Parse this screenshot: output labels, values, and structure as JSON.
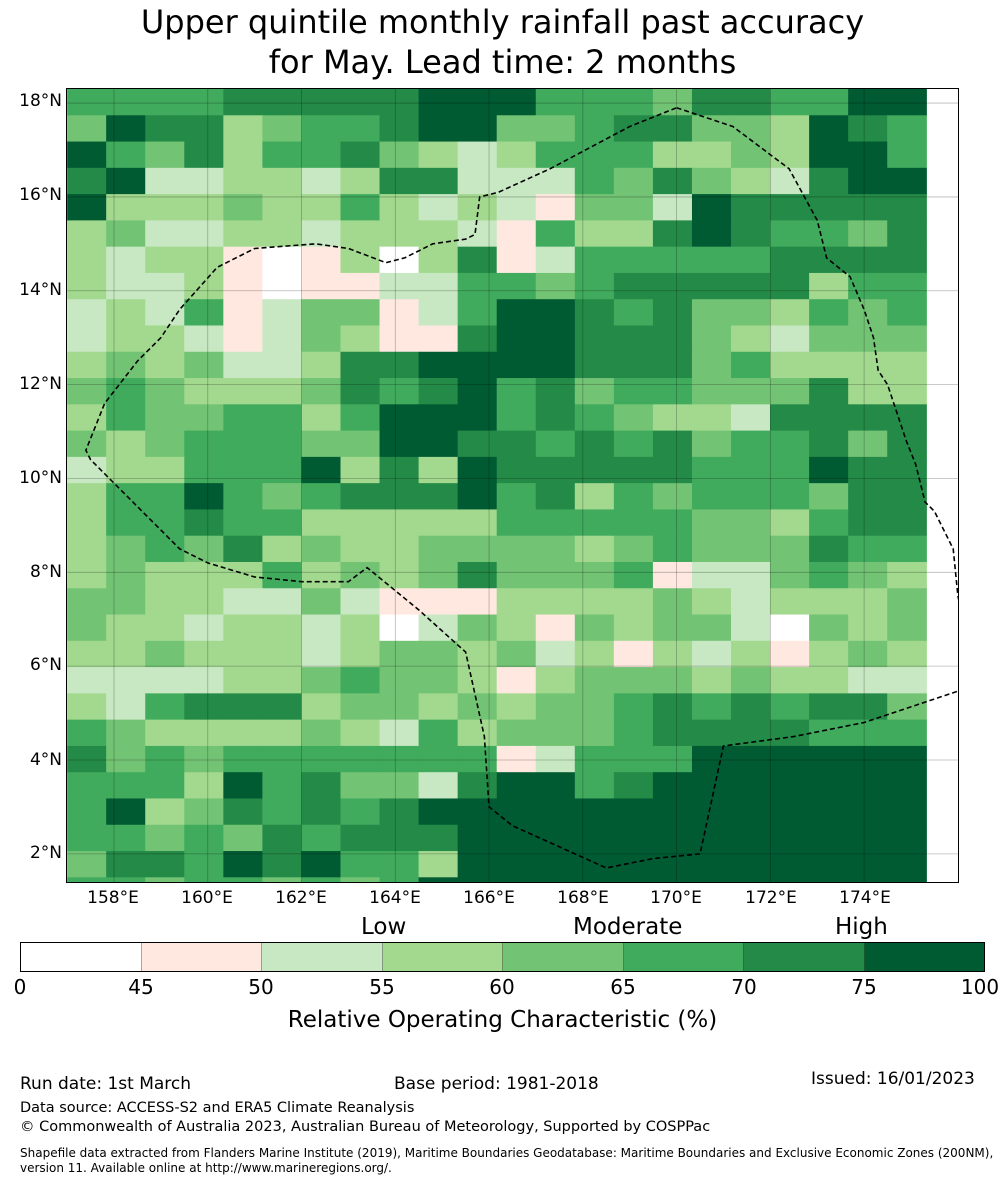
{
  "title": {
    "line1": "Upper quintile monthly rainfall past accuracy",
    "line2": "for May. Lead time: 2 months"
  },
  "map": {
    "lat_ticks": [
      "18°N",
      "16°N",
      "14°N",
      "12°N",
      "10°N",
      "8°N",
      "6°N",
      "4°N",
      "2°N"
    ],
    "lon_ticks": [
      "158°E",
      "160°E",
      "162°E",
      "164°E",
      "166°E",
      "168°E",
      "170°E",
      "172°E",
      "174°E"
    ],
    "lon_range": [
      157.0,
      176.0
    ],
    "lat_range": [
      1.4,
      18.3
    ],
    "grid_origin": {
      "lon": 157.0,
      "lat": 18.3
    },
    "cell_size_deg": {
      "lon": 0.833,
      "lat": 0.56
    },
    "grid_rows": [
      "5555666667775554665577",
      "4766345567744566443765",
      "7546355643235553343775",
      "6722332366222546432677",
      "7333433532321442766666",
      "3422332333215336765546",
      "3233101303612555556666",
      "3223101122554566666355",
      "2325124412577656443545",
      "2332124311677666432444",
      "3434223667777666453333",
      "4543334656756455444633",
      "3544553577756543326666",
      "4345554477665656455646",
      "2335557363766666555766",
      "3557545666756354555466",
      "3556553333355555443566",
      "3454634334444345444655",
      "3433353434644451224543",
      "4433224211133334323334",
      "4332332302431434420434",
      "3343332344342313231343",
      "2222334544313444343322",
      "3256663443434456565664",
      "5433334325344456666555",
      "6454555555512555777777",
      "5553756442677567777777",
      "5734656567777777777777",
      "5545465666777777777777",
      "4665767553777777777777",
      "5545545457777777777777",
      "6565777677777777667776"
    ],
    "region_outline": [
      [
        170.0,
        17.9
      ],
      [
        171.2,
        17.5
      ],
      [
        172.4,
        16.6
      ],
      [
        173.0,
        15.5
      ],
      [
        173.2,
        14.7
      ],
      [
        173.7,
        14.3
      ],
      [
        174.0,
        13.6
      ],
      [
        174.2,
        13.0
      ],
      [
        174.3,
        12.3
      ],
      [
        174.5,
        12.0
      ],
      [
        174.7,
        11.4
      ],
      [
        174.9,
        10.8
      ],
      [
        175.1,
        10.3
      ],
      [
        175.3,
        9.5
      ],
      [
        175.5,
        9.3
      ],
      [
        175.9,
        8.5
      ],
      [
        176.0,
        7.5
      ],
      [
        176.2,
        6.5
      ],
      [
        176.4,
        5.6
      ],
      [
        174.0,
        4.8
      ],
      [
        172.5,
        4.5
      ],
      [
        171.0,
        4.3
      ],
      [
        170.5,
        2.0
      ],
      [
        169.5,
        1.9
      ],
      [
        168.5,
        1.7
      ],
      [
        166.5,
        2.6
      ],
      [
        166.0,
        3.0
      ],
      [
        165.9,
        4.5
      ],
      [
        165.5,
        6.3
      ],
      [
        164.5,
        7.2
      ],
      [
        163.4,
        8.1
      ],
      [
        163.0,
        7.8
      ],
      [
        162.0,
        7.8
      ],
      [
        161.0,
        7.9
      ],
      [
        160.0,
        8.2
      ],
      [
        159.4,
        8.5
      ],
      [
        157.5,
        10.4
      ],
      [
        157.4,
        10.6
      ],
      [
        157.8,
        11.6
      ],
      [
        158.5,
        12.5
      ],
      [
        159.0,
        13.0
      ],
      [
        159.4,
        13.6
      ],
      [
        160.2,
        14.5
      ],
      [
        161.0,
        14.9
      ],
      [
        162.3,
        15.0
      ],
      [
        163.0,
        14.9
      ],
      [
        163.8,
        14.6
      ],
      [
        164.2,
        14.7
      ],
      [
        164.8,
        15.0
      ],
      [
        165.5,
        15.1
      ],
      [
        165.7,
        15.2
      ],
      [
        165.8,
        16.0
      ],
      [
        166.2,
        16.1
      ],
      [
        167.3,
        16.6
      ],
      [
        169.0,
        17.5
      ],
      [
        170.0,
        17.9
      ]
    ]
  },
  "level_labels": {
    "low": "Low",
    "moderate": "Moderate",
    "high": "High"
  },
  "colorbar": {
    "ticks": [
      "0",
      "45",
      "50",
      "55",
      "60",
      "65",
      "70",
      "75",
      "100"
    ],
    "colors": [
      "#ffffff",
      "#fee8e0",
      "#c8e8c3",
      "#a2d98f",
      "#73c375",
      "#41ab5d",
      "#248a47",
      "#005a32"
    ],
    "label": "Relative Operating Characteristic (%)"
  },
  "footer": {
    "run_date": "Run date: 1st March",
    "base_period": "Base period: 1981-2018",
    "issued": "Issued: 16/01/2023",
    "data_source": "Data source: ACCESS-S2 and ERA5 Climate Reanalysis",
    "copyright": "© Commonwealth of Australia 2023, Australian Bureau of Meteorology, Supported by COSPPac",
    "shapefile": "Shapefile data extracted from Flanders Marine Institute (2019), Maritime Boundaries Geodatabase: Maritime Boundaries and Exclusive Economic Zones (200NM), version 11. Available online at http://www.marineregions.org/."
  }
}
